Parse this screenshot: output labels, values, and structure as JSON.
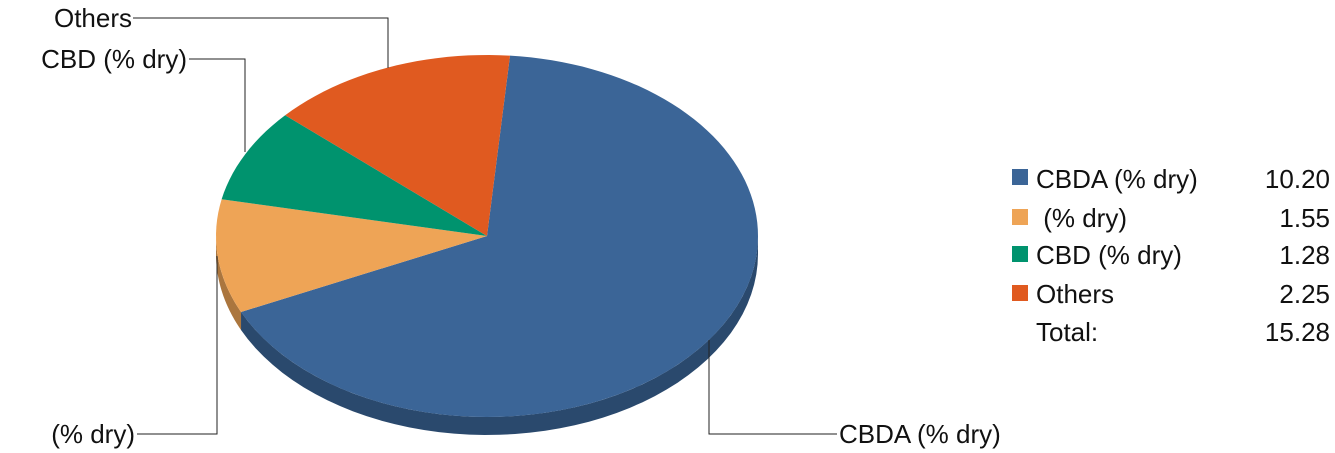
{
  "chart_data": {
    "type": "pie",
    "style": "3d",
    "slices": [
      {
        "label": "CBDA (% dry)",
        "value": 10.2,
        "display": "10.20",
        "color": "#3B6597"
      },
      {
        "label": " (% dry)",
        "value": 1.55,
        "display": "1.55",
        "color": "#EEA456"
      },
      {
        "label": "CBD (% dry)",
        "value": 1.28,
        "display": "1.28",
        "color": "#00936E"
      },
      {
        "label": "Others",
        "value": 2.25,
        "display": "2.25",
        "color": "#E05A20"
      }
    ],
    "total_label": "Total:",
    "total_display": "15.28",
    "legend_position": "right",
    "callouts": [
      "Others",
      "CBD (% dry)",
      "(% dry)",
      "CBDA (% dry)"
    ]
  }
}
